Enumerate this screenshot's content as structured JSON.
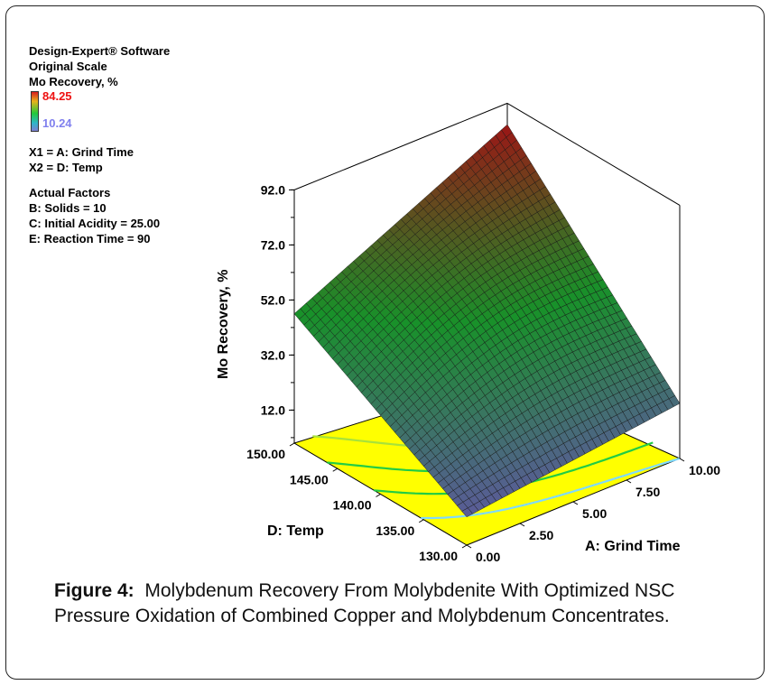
{
  "info": {
    "software": "Design-Expert® Software",
    "scale": "Original Scale",
    "response": "Mo Recovery, %",
    "legend_max": "84.25",
    "legend_min": "10.24",
    "x1": "X1 = A: Grind Time",
    "x2": "X2 = D: Temp",
    "actual_factors_title": "Actual Factors",
    "factor_b": "B: Solids = 10",
    "factor_c": "C: Initial Acidity = 25.00",
    "factor_e": "E: Reaction Time = 90"
  },
  "chart_data": {
    "type": "surface3d",
    "x_axis": {
      "label": "A: Grind Time",
      "ticks": [
        "0.00",
        "2.50",
        "5.00",
        "7.50",
        "10.00"
      ],
      "range": [
        0,
        10
      ]
    },
    "y_axis": {
      "label": "D: Temp",
      "ticks": [
        "130.00",
        "135.00",
        "140.00",
        "145.00",
        "150.00"
      ],
      "range": [
        130,
        150
      ]
    },
    "z_axis": {
      "label": "Mo Recovery, %",
      "ticks": [
        "12.0",
        "32.0",
        "52.0",
        "72.0",
        "92.0"
      ],
      "range": [
        0,
        92
      ]
    },
    "surface_corners": [
      {
        "grind_time": 0,
        "temp": 130,
        "recovery": 10.24
      },
      {
        "grind_time": 10,
        "temp": 130,
        "recovery": 20
      },
      {
        "grind_time": 0,
        "temp": 150,
        "recovery": 47
      },
      {
        "grind_time": 10,
        "temp": 150,
        "recovery": 84.25
      }
    ],
    "colors": {
      "high": "#d81e1e",
      "mid": "#22c93a",
      "low": "#7d7fd3",
      "floor": "#ffff00"
    }
  },
  "caption": {
    "label": "Figure 4:",
    "text": "Molybdenum Recovery From Molybdenite With Optimized NSC Pressure Oxidation of Combined Copper and Molybdenum Concentrates."
  }
}
